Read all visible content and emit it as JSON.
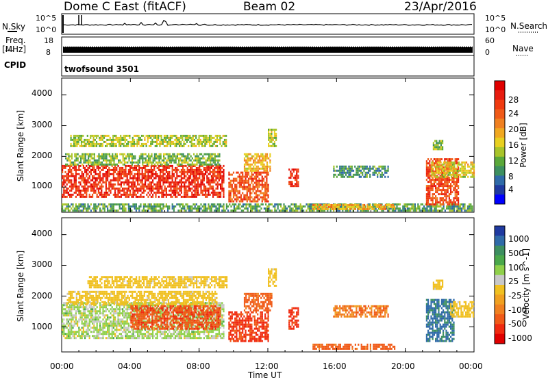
{
  "header": {
    "station": "Dome C East (fitACF)",
    "beam": "Beam 02",
    "date": "23/Apr/2016"
  },
  "status_panels": {
    "nsky_label": "N.Sky",
    "nsky_ticks": [
      "10^5",
      "10^0"
    ],
    "nsearch_label": "N.Search",
    "nsearch_ticks": [
      "10^5",
      "10^0"
    ],
    "freq_label": "Freq.",
    "freq_unit": "[MHz]",
    "freq_ticks": [
      "18",
      "8"
    ],
    "nave_label": "Nave",
    "nave_ticks": [
      "60",
      "0"
    ],
    "cpid_label": "CPID",
    "cpid_value": "twofsound 3501"
  },
  "x_axis": {
    "label": "Time UT",
    "ticks": [
      "00:00",
      "04:00",
      "08:00",
      "12:00",
      "16:00",
      "20:00",
      "00:00"
    ]
  },
  "chart_data": [
    {
      "type": "heatmap",
      "panel": "power",
      "ylabel": "Slant Range [km]",
      "yticks": [
        "1000",
        "2000",
        "3000",
        "4000"
      ],
      "ylim": [
        180,
        4550
      ],
      "xlim_hours": [
        0,
        24
      ],
      "colorbar_label": "Power [dB]",
      "colorbar_ticks": [
        "4",
        "8",
        "12",
        "16",
        "20",
        "24",
        "28"
      ],
      "colorbar_colors": [
        "#0000ff",
        "#1f3aa0",
        "#2f6aa8",
        "#3d8f60",
        "#5aa83a",
        "#a8c42a",
        "#e8d020",
        "#f0a820",
        "#f08020",
        "#f05a18",
        "#f03a10",
        "#e81c10",
        "#e00000"
      ],
      "colorbar_range": [
        0,
        32
      ],
      "regions": [
        {
          "t0": 0.0,
          "t1": 9.4,
          "r0": 650,
          "r1": 1700,
          "value": 27
        },
        {
          "t0": 0.2,
          "t1": 9.2,
          "r0": 1700,
          "r1": 2100,
          "value": 12
        },
        {
          "t0": 0.5,
          "t1": 9.6,
          "r0": 2300,
          "r1": 2650,
          "value": 14
        },
        {
          "t0": 0.0,
          "t1": 23.9,
          "r0": 200,
          "r1": 420,
          "value": 10
        },
        {
          "t0": 9.7,
          "t1": 12.0,
          "r0": 500,
          "r1": 1500,
          "value": 24
        },
        {
          "t0": 10.6,
          "t1": 12.1,
          "r0": 1500,
          "r1": 2100,
          "value": 18
        },
        {
          "t0": 12.0,
          "t1": 12.5,
          "r0": 2300,
          "r1": 2850,
          "value": 14
        },
        {
          "t0": 13.2,
          "t1": 13.8,
          "r0": 1000,
          "r1": 1600,
          "value": 27
        },
        {
          "t0": 15.8,
          "t1": 19.0,
          "r0": 1300,
          "r1": 1650,
          "value": 9
        },
        {
          "t0": 14.6,
          "t1": 19.4,
          "r0": 250,
          "r1": 450,
          "value": 19
        },
        {
          "t0": 21.2,
          "t1": 23.1,
          "r0": 400,
          "r1": 1900,
          "value": 25
        },
        {
          "t0": 21.5,
          "t1": 24.0,
          "r0": 1300,
          "r1": 1800,
          "value": 16
        },
        {
          "t0": 21.6,
          "t1": 22.2,
          "r0": 2200,
          "r1": 2500,
          "value": 12
        }
      ]
    },
    {
      "type": "heatmap",
      "panel": "velocity",
      "ylabel": "Slant Range [km]",
      "yticks": [
        "1000",
        "2000",
        "3000",
        "4000"
      ],
      "ylim": [
        180,
        4550
      ],
      "xlim_hours": [
        0,
        24
      ],
      "colorbar_label": "Velocity [m s^-1]",
      "colorbar_ticks": [
        "1000",
        "500",
        "100",
        "25",
        "-25",
        "-100",
        "-500",
        "-1000"
      ],
      "colorbar_colors": [
        "#1f3aa0",
        "#2f6aa8",
        "#3d8f60",
        "#4aa84a",
        "#8fd04a",
        "#c8c8c8",
        "#f0c020",
        "#f0a020",
        "#f08020",
        "#f05a18",
        "#f02a10",
        "#e00000"
      ],
      "regions": [
        {
          "t0": 0.0,
          "t1": 9.4,
          "r0": 600,
          "r1": 1800,
          "value": 60
        },
        {
          "t0": 4.0,
          "t1": 9.2,
          "r0": 900,
          "r1": 1700,
          "value": -200
        },
        {
          "t0": 0.3,
          "t1": 9.0,
          "r0": 1700,
          "r1": 2150,
          "value": 5
        },
        {
          "t0": 1.5,
          "t1": 9.6,
          "r0": 2250,
          "r1": 2600,
          "value": 5
        },
        {
          "t0": 9.7,
          "t1": 12.0,
          "r0": 500,
          "r1": 1500,
          "value": -300
        },
        {
          "t0": 10.6,
          "t1": 12.2,
          "r0": 1500,
          "r1": 2100,
          "value": -150
        },
        {
          "t0": 12.0,
          "t1": 12.5,
          "r0": 2300,
          "r1": 2850,
          "value": 5
        },
        {
          "t0": 13.2,
          "t1": 13.8,
          "r0": 900,
          "r1": 1600,
          "value": -300
        },
        {
          "t0": 15.8,
          "t1": 19.0,
          "r0": 1300,
          "r1": 1650,
          "value": -80
        },
        {
          "t0": 14.6,
          "t1": 19.4,
          "r0": 250,
          "r1": 450,
          "value": -150
        },
        {
          "t0": 21.2,
          "t1": 22.8,
          "r0": 500,
          "r1": 1900,
          "value": 600
        },
        {
          "t0": 22.6,
          "t1": 24.0,
          "r0": 1300,
          "r1": 1800,
          "value": 5
        },
        {
          "t0": 21.6,
          "t1": 22.2,
          "r0": 2200,
          "r1": 2500,
          "value": 5
        }
      ]
    }
  ]
}
